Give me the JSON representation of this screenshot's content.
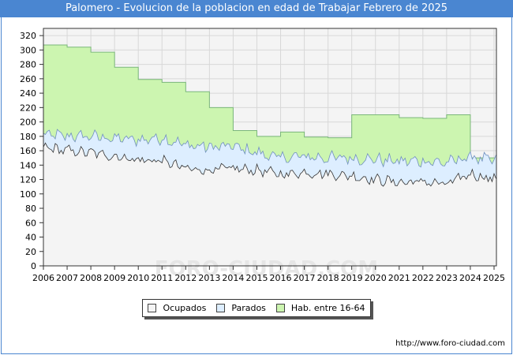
{
  "chart_data": {
    "type": "area",
    "title": "Palomero - Evolucion de la poblacion en edad de Trabajar Febrero de 2025",
    "xlabel": "",
    "ylabel": "",
    "x_tick_labels": [
      "2006",
      "2007",
      "2008",
      "2009",
      "2010",
      "2011",
      "2012",
      "2013",
      "2014",
      "2015",
      "2016",
      "2017",
      "2018",
      "2019",
      "2020",
      "2021",
      "2022",
      "2023",
      "2024",
      "2025"
    ],
    "y_tick_labels": [
      "0",
      "20",
      "40",
      "60",
      "80",
      "100",
      "120",
      "140",
      "160",
      "180",
      "200",
      "220",
      "240",
      "260",
      "280",
      "300",
      "320"
    ],
    "xlim": [
      2006,
      2025.1
    ],
    "ylim": [
      0,
      330
    ],
    "grid": true,
    "series": [
      {
        "name": "Hab. entre 16-64",
        "color": "#ccf5b0",
        "line_color": "#7ab77a",
        "steps": [
          {
            "year": 2006,
            "value": 307
          },
          {
            "year": 2007,
            "value": 304
          },
          {
            "year": 2008,
            "value": 297
          },
          {
            "year": 2009,
            "value": 276
          },
          {
            "year": 2010,
            "value": 259
          },
          {
            "year": 2011,
            "value": 255
          },
          {
            "year": 2012,
            "value": 242
          },
          {
            "year": 2013,
            "value": 220
          },
          {
            "year": 2014,
            "value": 188
          },
          {
            "year": 2015,
            "value": 180
          },
          {
            "year": 2016,
            "value": 186
          },
          {
            "year": 2017,
            "value": 179
          },
          {
            "year": 2018,
            "value": 178
          },
          {
            "year": 2019,
            "value": 210
          },
          {
            "year": 2020,
            "value": 210
          },
          {
            "year": 2021,
            "value": 206
          },
          {
            "year": 2022,
            "value": 205
          },
          {
            "year": 2023,
            "value": 210
          },
          {
            "year": 2024,
            "value": 150
          }
        ],
        "end_year": 2025.1
      },
      {
        "name": "Parados",
        "color": "#ddeeff",
        "line_color": "#6f8fbf",
        "annual_levels": [
          {
            "year": 2006,
            "value": 182
          },
          {
            "year": 2007,
            "value": 180
          },
          {
            "year": 2008,
            "value": 180
          },
          {
            "year": 2009,
            "value": 177
          },
          {
            "year": 2010,
            "value": 175
          },
          {
            "year": 2011,
            "value": 178
          },
          {
            "year": 2012,
            "value": 168
          },
          {
            "year": 2013,
            "value": 165
          },
          {
            "year": 2014,
            "value": 166
          },
          {
            "year": 2015,
            "value": 157
          },
          {
            "year": 2016,
            "value": 150
          },
          {
            "year": 2017,
            "value": 152
          },
          {
            "year": 2018,
            "value": 150
          },
          {
            "year": 2019,
            "value": 150
          },
          {
            "year": 2020,
            "value": 148
          },
          {
            "year": 2021,
            "value": 145
          },
          {
            "year": 2022,
            "value": 146
          },
          {
            "year": 2023,
            "value": 143
          },
          {
            "year": 2024,
            "value": 152
          },
          {
            "year": 2025,
            "value": 145
          }
        ]
      },
      {
        "name": "Ocupados",
        "color": "#f4f4f4",
        "line_color": "#333333",
        "annual_levels": [
          {
            "year": 2006,
            "value": 165
          },
          {
            "year": 2007,
            "value": 160
          },
          {
            "year": 2008,
            "value": 157
          },
          {
            "year": 2009,
            "value": 153
          },
          {
            "year": 2010,
            "value": 147
          },
          {
            "year": 2011,
            "value": 146
          },
          {
            "year": 2012,
            "value": 135
          },
          {
            "year": 2013,
            "value": 133
          },
          {
            "year": 2014,
            "value": 135
          },
          {
            "year": 2015,
            "value": 133
          },
          {
            "year": 2016,
            "value": 127
          },
          {
            "year": 2017,
            "value": 130
          },
          {
            "year": 2018,
            "value": 128
          },
          {
            "year": 2019,
            "value": 125
          },
          {
            "year": 2020,
            "value": 120
          },
          {
            "year": 2021,
            "value": 116
          },
          {
            "year": 2022,
            "value": 117
          },
          {
            "year": 2023,
            "value": 113
          },
          {
            "year": 2024,
            "value": 128
          },
          {
            "year": 2025,
            "value": 120
          }
        ]
      }
    ],
    "legend": {
      "position": "bottom-center",
      "entries": [
        {
          "label": "Ocupados",
          "color": "#f4f4f4"
        },
        {
          "label": "Parados",
          "color": "#ddeeff"
        },
        {
          "label": "Hab. entre 16-64",
          "color": "#ccf5b0"
        }
      ]
    },
    "watermark": "FORO-CIUDAD.COM"
  },
  "footer": {
    "url": "http://www.foro-ciudad.com"
  }
}
